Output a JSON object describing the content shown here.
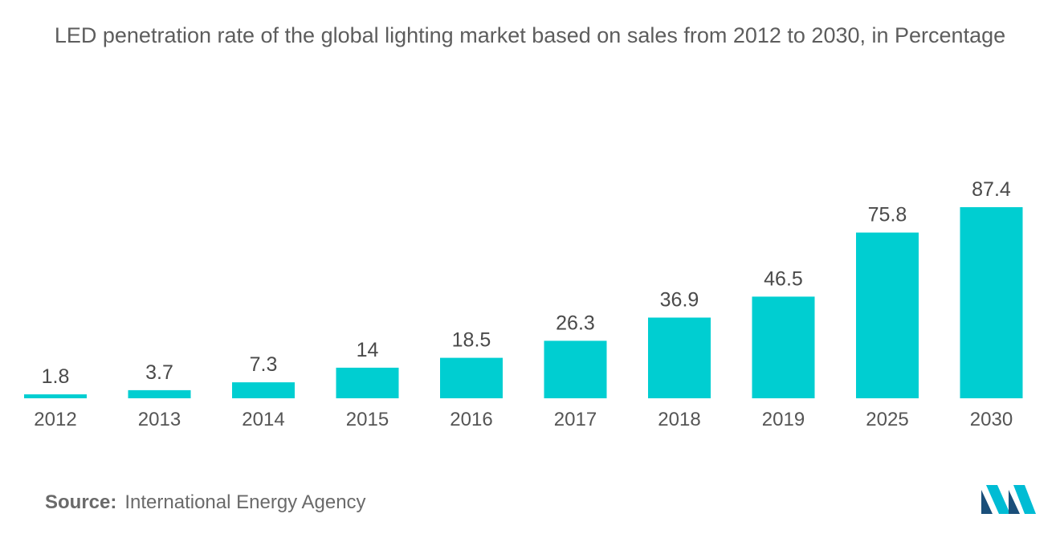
{
  "chart_data": {
    "type": "bar",
    "title": "LED penetration rate of the global lighting market based on sales from 2012 to 2030, in Percentage",
    "categories": [
      "2012",
      "2013",
      "2014",
      "2015",
      "2016",
      "2017",
      "2018",
      "2019",
      "2025",
      "2030"
    ],
    "values": [
      1.8,
      3.7,
      7.3,
      14,
      18.5,
      26.3,
      36.9,
      46.5,
      75.8,
      87.4
    ],
    "value_labels": [
      "1.8",
      "3.7",
      "7.3",
      "14",
      "18.5",
      "26.3",
      "36.9",
      "46.5",
      "75.8",
      "87.4"
    ],
    "xlabel": "",
    "ylabel": "",
    "ylim": [
      0,
      87.4
    ],
    "grid": false,
    "legend": "none",
    "bar_color": "#00ced1"
  },
  "source": {
    "key": "Source:",
    "text": "International Energy Agency"
  },
  "logo": {
    "icon": "mordor-intelligence-logo-icon",
    "colors": [
      "#1a4f7a",
      "#00bcd4"
    ]
  }
}
